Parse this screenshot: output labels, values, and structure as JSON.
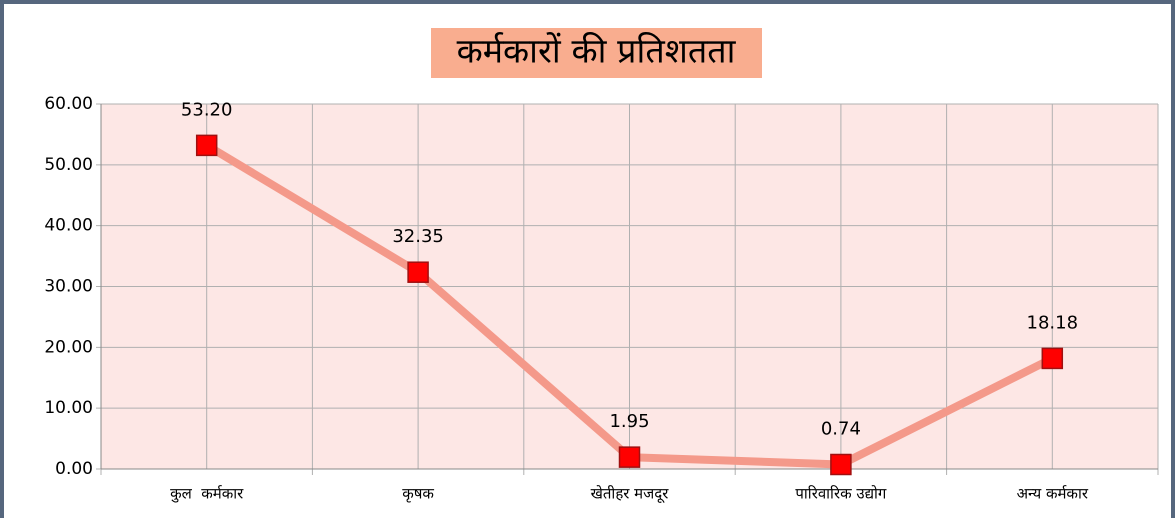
{
  "chart_data": {
    "type": "line",
    "title": "कर्मकारों की प्रतिशतता",
    "categories": [
      "कुल  कर्मकार",
      "कृषक",
      "खेतीहर मजदूर",
      "पारिवारिक उद्योग",
      "अन्य कर्मकार"
    ],
    "series": [
      {
        "color": "#f4998a",
        "marker_color": "#ff0000",
        "values": [
          53.2,
          32.35,
          1.95,
          0.74,
          18.18
        ],
        "value_labels": [
          "53.20",
          "32.35",
          "1.95",
          "0.74",
          "18.18"
        ]
      }
    ],
    "ylim": [
      0,
      60
    ],
    "yticks": [
      {
        "value": 0,
        "label": "0.00"
      },
      {
        "value": 10,
        "label": "10.00"
      },
      {
        "value": 20,
        "label": "20.00"
      },
      {
        "value": 30,
        "label": "30.00"
      },
      {
        "value": 40,
        "label": "40.00"
      },
      {
        "value": 50,
        "label": "50.00"
      },
      {
        "value": 60,
        "label": "60.00"
      }
    ],
    "grid": true
  }
}
